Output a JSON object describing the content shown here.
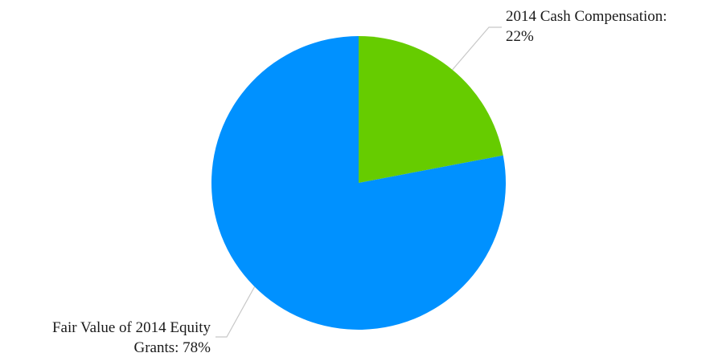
{
  "chart_data": {
    "type": "pie",
    "start_angle_deg": 0,
    "direction": "clockwise",
    "slices": [
      {
        "name": "2014 Cash Compensation",
        "value": 22,
        "label_lines": [
          "2014 Cash Compensation:",
          "22%"
        ],
        "color": "#66cc00"
      },
      {
        "name": "Fair Value of 2014 Equity Grants",
        "value": 78,
        "label_lines": [
          "Fair Value of 2014 Equity",
          "Grants: 78%"
        ],
        "color": "#0091ff"
      }
    ],
    "leader_line_color": "#c8c8c8",
    "legend": "none"
  }
}
